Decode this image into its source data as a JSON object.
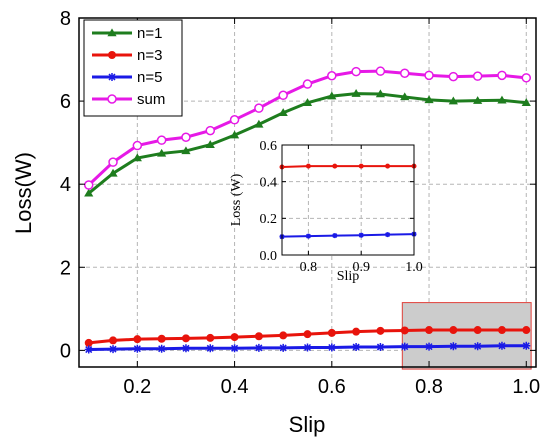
{
  "chart_data": [
    {
      "type": "line",
      "xlabel": "Slip",
      "ylabel": "Loss(W)",
      "xlim": [
        0.08,
        1.02
      ],
      "ylim": [
        -0.4,
        8
      ],
      "xticks": [
        "0.2",
        "0.4",
        "0.6",
        "0.8",
        "1.0"
      ],
      "yticks": [
        "0",
        "2",
        "4",
        "6",
        "8"
      ],
      "grid": true,
      "legend_position": "top-left",
      "x": [
        0.1,
        0.15,
        0.2,
        0.25,
        0.3,
        0.35,
        0.4,
        0.45,
        0.5,
        0.55,
        0.6,
        0.65,
        0.7,
        0.75,
        0.8,
        0.85,
        0.9,
        0.95,
        1.0
      ],
      "series": [
        {
          "name": "n=1",
          "color": "#1e7d1e",
          "marker": "triangle",
          "values": [
            3.78,
            4.26,
            4.63,
            4.74,
            4.8,
            4.95,
            5.18,
            5.44,
            5.72,
            5.96,
            6.12,
            6.18,
            6.17,
            6.1,
            6.03,
            6.0,
            6.01,
            6.02,
            5.96
          ]
        },
        {
          "name": "n=3",
          "color": "#e8140c",
          "marker": "circle",
          "values": [
            0.18,
            0.24,
            0.27,
            0.28,
            0.29,
            0.3,
            0.32,
            0.34,
            0.36,
            0.39,
            0.42,
            0.45,
            0.47,
            0.48,
            0.49,
            0.49,
            0.49,
            0.49,
            0.49
          ]
        },
        {
          "name": "n=5",
          "color": "#1a1ae6",
          "marker": "star",
          "values": [
            0.02,
            0.03,
            0.04,
            0.04,
            0.05,
            0.05,
            0.05,
            0.06,
            0.06,
            0.07,
            0.07,
            0.08,
            0.08,
            0.09,
            0.09,
            0.1,
            0.1,
            0.11,
            0.11
          ]
        },
        {
          "name": "sum",
          "color": "#e619e6",
          "marker": "open-circle",
          "values": [
            3.98,
            4.53,
            4.93,
            5.06,
            5.13,
            5.29,
            5.55,
            5.83,
            6.14,
            6.41,
            6.61,
            6.71,
            6.72,
            6.67,
            6.62,
            6.59,
            6.6,
            6.62,
            6.56
          ]
        }
      ],
      "highlight_region": {
        "x": [
          0.745,
          1.01
        ],
        "y": [
          -0.45,
          1.15
        ],
        "fill": "#cccccc",
        "edge": "#e0403a"
      }
    },
    {
      "type": "line",
      "xlabel": "Slip",
      "ylabel": "Loss (W)",
      "xlim": [
        0.75,
        1.0
      ],
      "ylim": [
        0.0,
        0.6
      ],
      "xticks": [
        "0.8",
        "0.9",
        "1.0"
      ],
      "yticks": [
        "0.0",
        "0.2",
        "0.4",
        "0.6"
      ],
      "grid": true,
      "x": [
        0.75,
        0.8,
        0.85,
        0.9,
        0.95,
        1.0
      ],
      "series": [
        {
          "name": "n=3",
          "color": "#e8140c",
          "marker": "circle",
          "values": [
            0.48,
            0.485,
            0.485,
            0.485,
            0.485,
            0.485
          ]
        },
        {
          "name": "n=5",
          "color": "#1a1ae6",
          "marker": "star",
          "values": [
            0.1,
            0.103,
            0.106,
            0.108,
            0.111,
            0.114
          ]
        }
      ]
    }
  ]
}
